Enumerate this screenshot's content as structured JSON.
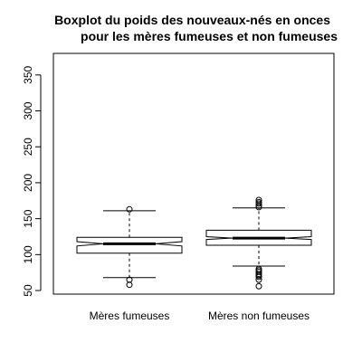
{
  "chart_data": {
    "type": "boxplot",
    "title": [
      "Boxplot du poids des nouveaux-nés en onces",
      "pour les mères fumeuses et non fumeuses"
    ],
    "xlabel": "",
    "ylabel": "",
    "ylim": [
      45,
      380
    ],
    "yticks": [
      50,
      100,
      150,
      200,
      250,
      300,
      350
    ],
    "notched": true,
    "grid": false,
    "groups": [
      {
        "label": "Mères fumeuses",
        "whisker_low": 68,
        "q1": 102,
        "median": 115,
        "q3": 124,
        "whisker_high": 161,
        "notch_low": 112,
        "notch_high": 118,
        "outliers": [
          163,
          65,
          58
        ]
      },
      {
        "label": "Mères non fumeuses",
        "whisker_low": 84,
        "q1": 113,
        "median": 123,
        "q3": 134,
        "whisker_high": 165,
        "notch_low": 121,
        "notch_high": 125,
        "outliers": [
          176,
          173,
          171,
          168,
          166,
          80,
          78,
          76,
          73,
          71,
          69,
          65,
          56
        ]
      }
    ]
  }
}
